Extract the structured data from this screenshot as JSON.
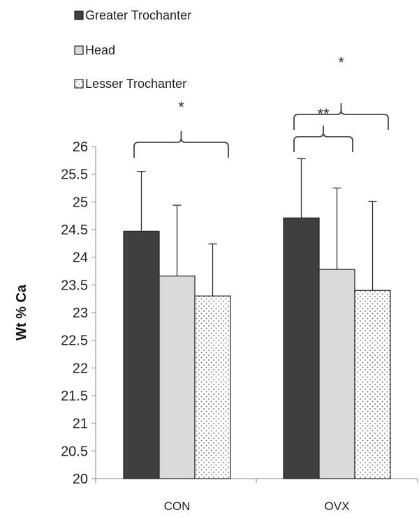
{
  "chart_data": {
    "type": "bar",
    "categories": [
      "CON",
      "OVX"
    ],
    "series": [
      {
        "name": "Greater Trochanter",
        "values": [
          24.47,
          24.71
        ],
        "errors": [
          1.08,
          1.07
        ],
        "fill": "#3f3f3f",
        "pattern": "solid"
      },
      {
        "name": "Head",
        "values": [
          23.66,
          23.78
        ],
        "errors": [
          1.28,
          1.47
        ],
        "fill": "#dadada",
        "pattern": "solid"
      },
      {
        "name": "Lesser Trochanter",
        "values": [
          23.3,
          23.4
        ],
        "errors": [
          0.94,
          1.61
        ],
        "fill": "#ffffff",
        "pattern": "dotted"
      }
    ],
    "ylabel": "Wt % Ca",
    "xlabel": "",
    "title": "",
    "ylim": [
      20,
      26
    ],
    "yticks": [
      "20",
      "20.5",
      "21",
      "21.5",
      "22",
      "22.5",
      "23",
      "23.5",
      "24",
      "24.5",
      "25",
      "25.5",
      "26"
    ],
    "legend_position": "top-left",
    "grid": false,
    "annotations": [
      {
        "category": "CON",
        "from_series": 0,
        "to_series": 2,
        "label": "*"
      },
      {
        "category": "OVX",
        "from_series": 0,
        "to_series": 1,
        "label": "**"
      },
      {
        "category": "OVX",
        "from_series": 0,
        "to_series": 2,
        "label": "*"
      }
    ]
  }
}
